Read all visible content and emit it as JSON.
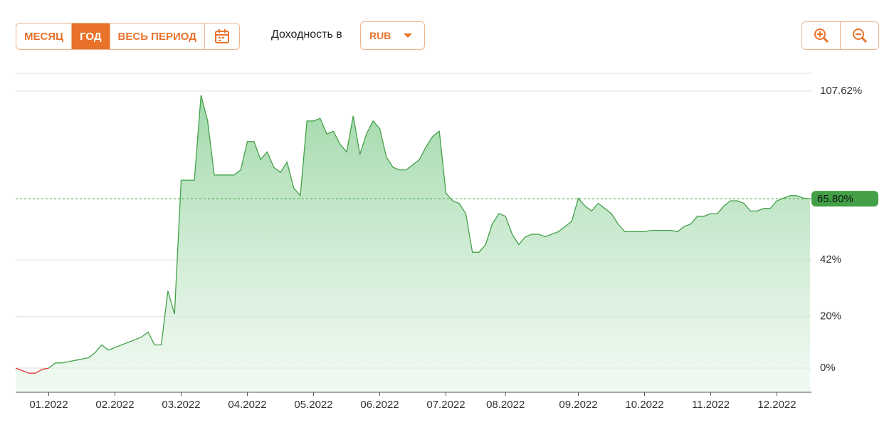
{
  "controls": {
    "periods": [
      "МЕСЯЦ",
      "ГОД",
      "ВЕСЬ ПЕРИОД"
    ],
    "active_period": 1,
    "yield_label": "Доходность в",
    "currency": "RUB"
  },
  "chart_data": {
    "type": "area",
    "categories": [
      null,
      null,
      null,
      null,
      null,
      "01.2022",
      null,
      null,
      null,
      null,
      null,
      null,
      null,
      null,
      null,
      "02.2022",
      null,
      null,
      null,
      null,
      null,
      null,
      null,
      null,
      null,
      "03.2022",
      null,
      null,
      null,
      null,
      null,
      null,
      null,
      null,
      null,
      "04.2022",
      null,
      null,
      null,
      null,
      null,
      null,
      null,
      null,
      null,
      "05.2022",
      null,
      null,
      null,
      null,
      null,
      null,
      null,
      null,
      null,
      "06.2022",
      null,
      null,
      null,
      null,
      null,
      null,
      null,
      null,
      null,
      "07.2022",
      null,
      null,
      null,
      null,
      null,
      null,
      null,
      null,
      "08.2022",
      null,
      null,
      null,
      null,
      null,
      null,
      null,
      null,
      null,
      null,
      "09.2022",
      null,
      null,
      null,
      null,
      null,
      null,
      null,
      null,
      null,
      "10.2022",
      null,
      null,
      null,
      null,
      null,
      null,
      null,
      null,
      null,
      "11.2022",
      null,
      null,
      null,
      null,
      null,
      null,
      null,
      null,
      null,
      "12.2022",
      null,
      null,
      null,
      null,
      null
    ],
    "values": [
      0,
      -1,
      -2,
      -2,
      -0.5,
      0,
      2,
      2,
      2.5,
      3,
      3.5,
      4,
      6,
      9,
      7,
      8,
      9,
      10,
      11,
      12,
      14,
      9,
      9,
      30,
      21,
      73,
      73,
      73,
      106,
      96,
      75,
      75,
      75,
      75,
      77,
      88,
      88,
      81,
      84,
      78,
      76,
      80,
      70,
      67,
      96,
      96,
      97,
      91,
      92,
      87,
      84,
      98,
      83,
      91,
      96,
      93,
      82,
      78,
      77,
      77,
      79,
      81,
      86,
      90,
      92,
      68,
      65,
      64,
      60,
      45,
      45,
      48,
      56,
      60,
      59,
      52,
      48,
      51,
      52,
      52,
      51,
      52,
      53,
      55,
      57,
      66,
      63,
      61,
      64,
      62,
      60,
      56,
      53,
      53,
      53,
      53,
      53.5,
      53.5,
      53.5,
      53.5,
      53,
      55,
      56,
      59,
      59,
      60,
      60,
      63,
      65,
      65,
      64,
      61,
      61,
      62,
      62,
      65,
      66,
      67,
      67,
      66,
      65.8
    ],
    "color": "#43a047",
    "negative_color": "#e53935",
    "ylim": [
      -9.4,
      114.5
    ],
    "yticks": [
      {
        "value": 0,
        "label": "0%"
      },
      {
        "value": 20,
        "label": "20%"
      },
      {
        "value": 42,
        "label": "42%"
      },
      {
        "value": 107.62,
        "label": "107.62%"
      }
    ],
    "current": {
      "value": 65.8,
      "label": "65.80%"
    },
    "grid": true
  }
}
